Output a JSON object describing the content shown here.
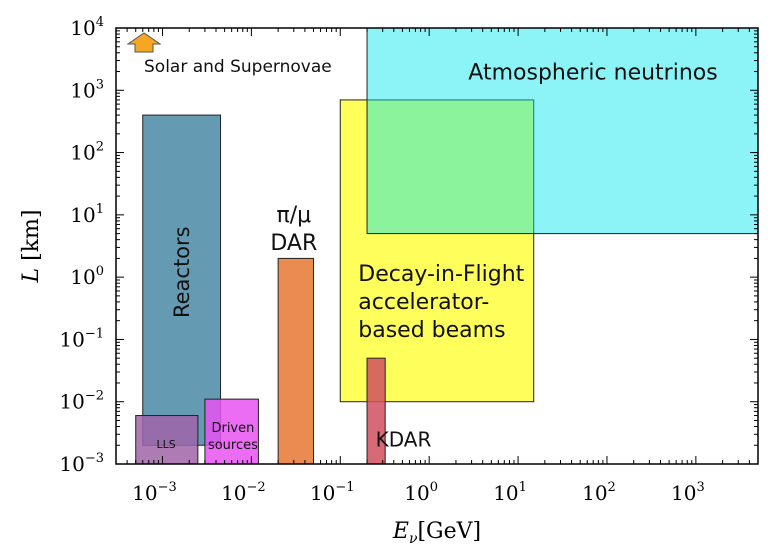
{
  "chart_data": {
    "type": "area",
    "xscale": "log",
    "yscale": "log",
    "xlim": [
      0.0003,
      5000
    ],
    "ylim": [
      0.001,
      10000
    ],
    "xlabel": {
      "main": "E",
      "sub": "ν",
      "unit": "[GeV]"
    },
    "ylabel": {
      "main": "L",
      "unit": "[km]"
    },
    "x_ticks": [
      {
        "base": "10",
        "exp": "−3"
      },
      {
        "base": "10",
        "exp": "−2"
      },
      {
        "base": "10",
        "exp": "−1"
      },
      {
        "base": "10",
        "exp": "0"
      },
      {
        "base": "10",
        "exp": "1"
      },
      {
        "base": "10",
        "exp": "2"
      },
      {
        "base": "10",
        "exp": "3"
      }
    ],
    "y_ticks": [
      {
        "base": "10",
        "exp": "−3"
      },
      {
        "base": "10",
        "exp": "−2"
      },
      {
        "base": "10",
        "exp": "−1"
      },
      {
        "base": "10",
        "exp": "0"
      },
      {
        "base": "10",
        "exp": "1"
      },
      {
        "base": "10",
        "exp": "2"
      },
      {
        "base": "10",
        "exp": "3"
      },
      {
        "base": "10",
        "exp": "4"
      }
    ],
    "regions": [
      {
        "name": "Reactors",
        "label": [
          "Reactors"
        ],
        "x": [
          0.0006,
          0.0045
        ],
        "y": [
          0.002,
          400
        ],
        "color": "#4a88a6",
        "opacity": 0.85,
        "rotated": true
      },
      {
        "name": "Decay-in-Flight accelerator-based beams",
        "label": [
          "Decay-in-Flight",
          "accelerator-",
          "based beams"
        ],
        "x": [
          0.1,
          15
        ],
        "y": [
          0.01,
          700
        ],
        "color": "#ffff33",
        "opacity": 0.8,
        "rotated": false
      },
      {
        "name": "Atmospheric neutrinos",
        "label": [
          "Atmospheric neutrinos"
        ],
        "x": [
          0.2,
          5000
        ],
        "y": [
          5,
          10000
        ],
        "color": "#00e5ee",
        "opacity": 0.45,
        "rotated": false
      },
      {
        "name": "π/μ DAR",
        "label": [
          "π/μ",
          "DAR"
        ],
        "x": [
          0.02,
          0.05
        ],
        "y": [
          0.001,
          2
        ],
        "color": "#e8803f",
        "opacity": 0.9,
        "rotated": false
      },
      {
        "name": "KDAR",
        "label": [
          "KDAR"
        ],
        "x": [
          0.2,
          0.32
        ],
        "y": [
          0.001,
          0.05
        ],
        "color": "#d0505e",
        "opacity": 0.85,
        "rotated": false
      },
      {
        "name": "LLS",
        "label": [
          "LLS"
        ],
        "x": [
          0.0005,
          0.0025
        ],
        "y": [
          0.001,
          0.006
        ],
        "color": "#a064a8",
        "opacity": 0.85,
        "rotated": false
      },
      {
        "name": "Driven sources",
        "label": [
          "Driven",
          "sources"
        ],
        "x": [
          0.003,
          0.012
        ],
        "y": [
          0.001,
          0.011
        ],
        "color": "#e653f2",
        "opacity": 0.85,
        "rotated": false
      }
    ],
    "annotations": [
      {
        "text": "Solar and Supernovae",
        "icon": "up-arrow-icon",
        "color": "#f5a623"
      }
    ],
    "grid": false,
    "legend": "none"
  }
}
